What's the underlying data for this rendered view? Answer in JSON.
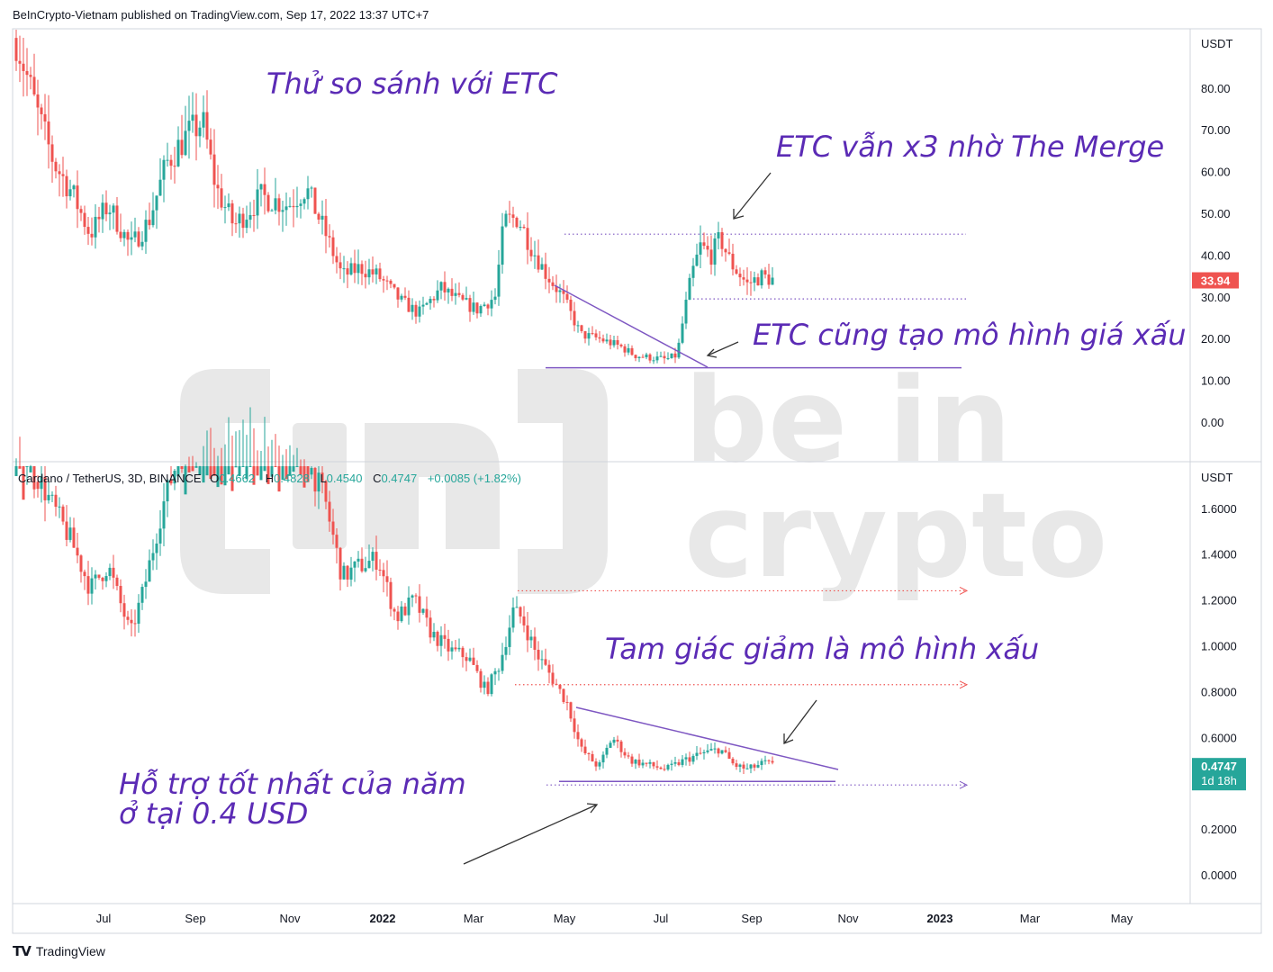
{
  "header": {
    "text": "BeInCrypto-Vietnam published on TradingView.com, Sep 17, 2022 13:37 UTC+7"
  },
  "footer": {
    "logo_icon": "tradingview-logo-icon",
    "brand": "TradingView"
  },
  "watermark": {
    "line1": "be in",
    "line2": "crypto"
  },
  "colors": {
    "up": "#26a69a",
    "down": "#ef5350",
    "annotation": "#5b2bb5",
    "trendline": "#7e57c2",
    "dotted_red": "#ef5350",
    "dotted_purple": "#7e57c2"
  },
  "x_axis": {
    "labels": [
      "Jul",
      "Sep",
      "Nov",
      "2022",
      "Mar",
      "May",
      "Jul",
      "Sep",
      "Nov",
      "2023",
      "Mar",
      "May"
    ]
  },
  "chart_data": [
    {
      "type": "candlestick",
      "title": "",
      "currency_label": "USDT",
      "ylim": [
        0,
        100
      ],
      "y_ticks": [
        "80.00",
        "70.00",
        "60.00",
        "50.00",
        "40.00",
        "30.00",
        "20.00",
        "10.00",
        "0.00"
      ],
      "y_tick_values": [
        80,
        70,
        60,
        50,
        40,
        30,
        20,
        10,
        0
      ],
      "last_price": {
        "value": 33.94,
        "label": "33.94"
      },
      "levels": {
        "resistance": 45,
        "mid": 29.5,
        "support": 13
      },
      "annotations": [
        {
          "text": "Thử so sánh với ETC"
        },
        {
          "text": "ETC vẫn x3 nhờ The Merge"
        },
        {
          "text": "ETC cũng tạo mô hình giá xấu"
        }
      ]
    },
    {
      "type": "candlestick",
      "title": "",
      "currency_label": "USDT",
      "legend": {
        "symbol": "Cardano / TetherUS, 3D, BINANCE",
        "open_label": "O",
        "open": "0.4662",
        "high_label": "H",
        "high": "0.4828",
        "low_label": "L",
        "low": "0.4540",
        "close_label": "C",
        "close": "0.4747",
        "change": "+0.0085 (+1.82%)"
      },
      "ylim": [
        -0.35,
        2.0
      ],
      "y_ticks": [
        "1.6000",
        "1.4000",
        "1.2000",
        "1.0000",
        "0.8000",
        "0.6000",
        "0.4000",
        "0.2000",
        "0.0000"
      ],
      "y_tick_values": [
        1.6,
        1.4,
        1.2,
        1.0,
        0.8,
        0.6,
        0.4,
        0.2,
        0.0
      ],
      "last_price": {
        "value": 0.4747,
        "label": "0.4747",
        "countdown": "1d 18h"
      },
      "levels": {
        "r1": 1.24,
        "r2": 0.83,
        "support": 0.4
      },
      "annotations": [
        {
          "text": "Tam giác giảm là mô hình xấu"
        },
        {
          "text": "Hỗ trợ tốt nhất của năm"
        },
        {
          "text": "ở tại 0.4 USD"
        }
      ]
    }
  ]
}
